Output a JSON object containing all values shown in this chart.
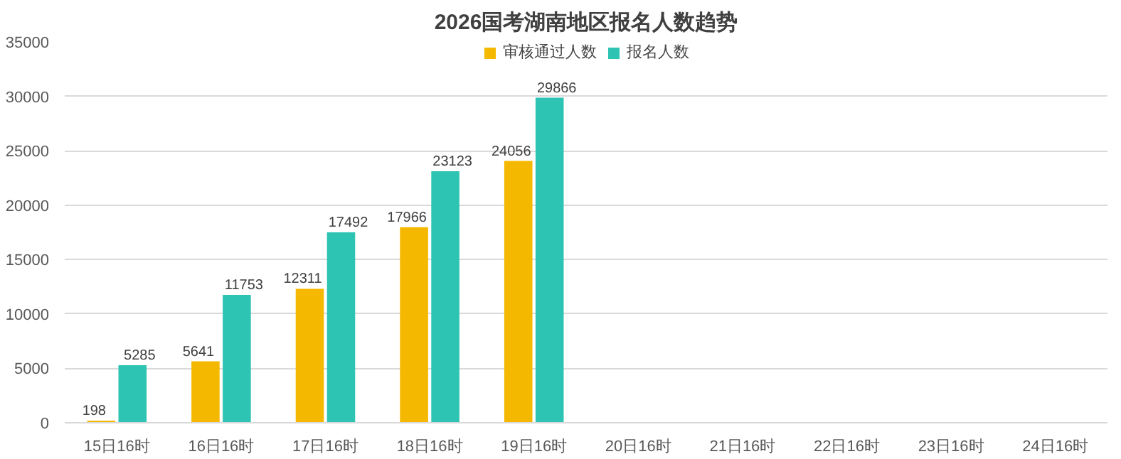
{
  "chart_data": {
    "type": "bar",
    "title": "2026国考湖南地区报名人数趋势",
    "categories": [
      "15日16时",
      "16日16时",
      "17日16时",
      "18日16时",
      "19日16时",
      "20日16时",
      "21日16时",
      "22日16时",
      "23日16时",
      "24日16时"
    ],
    "series": [
      {
        "name": "审核通过人数",
        "color": "#f5b800",
        "values": [
          198,
          5641,
          12311,
          17966,
          24056,
          null,
          null,
          null,
          null,
          null
        ]
      },
      {
        "name": "报名人数",
        "color": "#2ec4b4",
        "values": [
          5285,
          11753,
          17492,
          23123,
          29866,
          null,
          null,
          null,
          null,
          null
        ]
      }
    ],
    "ylim": [
      0,
      35000
    ],
    "yticks": [
      0,
      5000,
      10000,
      15000,
      20000,
      25000,
      30000,
      35000
    ],
    "grid": "y",
    "legend": "top",
    "data_labels": true
  }
}
